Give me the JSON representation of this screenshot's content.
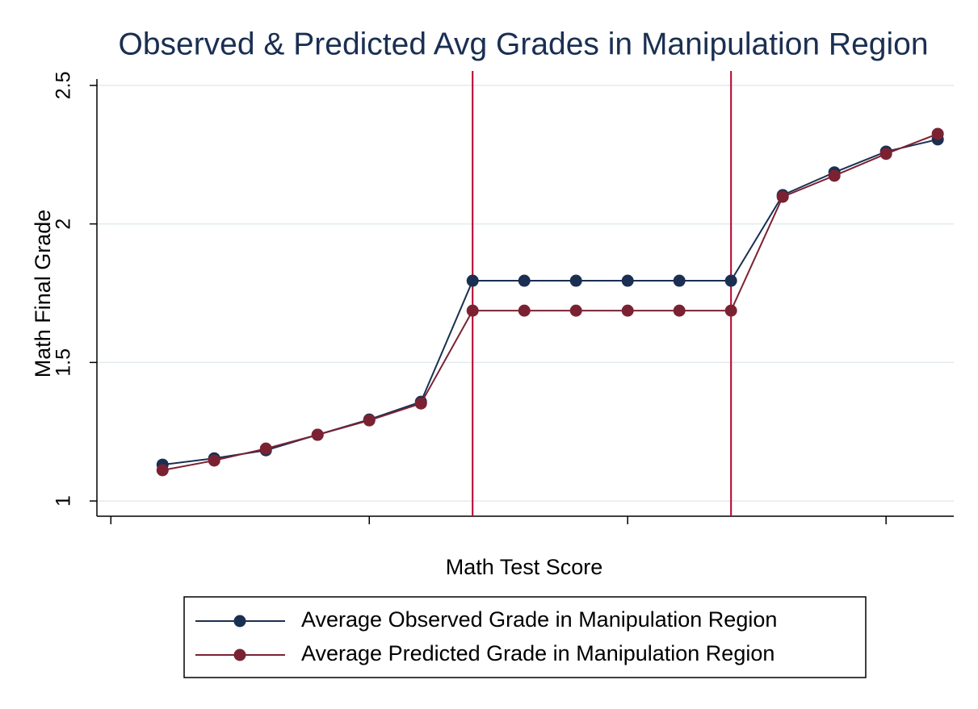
{
  "chart_data": {
    "type": "line",
    "title": "Observed & Predicted Avg Grades in Manipulation Region",
    "xlabel": "Math Test Score",
    "ylabel": "Math Final Grade",
    "x": [
      1,
      2,
      3,
      4,
      5,
      6,
      7,
      8,
      9,
      10,
      11,
      12,
      13,
      14,
      15,
      16
    ],
    "series": [
      {
        "name": "Average Observed Grade in Manipulation Region",
        "color": "#1a2f52",
        "values": [
          1.131,
          1.154,
          1.183,
          1.239,
          1.294,
          1.358,
          1.795,
          1.795,
          1.795,
          1.795,
          1.795,
          1.795,
          2.104,
          2.186,
          2.261,
          2.305
        ]
      },
      {
        "name": "Average Predicted Grade in Manipulation Region",
        "color": "#7b2232",
        "values": [
          1.111,
          1.146,
          1.189,
          1.239,
          1.291,
          1.352,
          1.687,
          1.687,
          1.687,
          1.687,
          1.687,
          1.687,
          2.098,
          2.174,
          2.253,
          2.325
        ]
      }
    ],
    "vlines": [
      7,
      12
    ],
    "vline_color": "#b5002a",
    "xlim": [
      -0.27,
      16.31
    ],
    "xticks": [
      0,
      5,
      10,
      15
    ],
    "ylim": [
      0.945,
      2.552
    ],
    "yticks": [
      1,
      1.5,
      2,
      2.5
    ],
    "grid": true,
    "legend": "bottom"
  }
}
